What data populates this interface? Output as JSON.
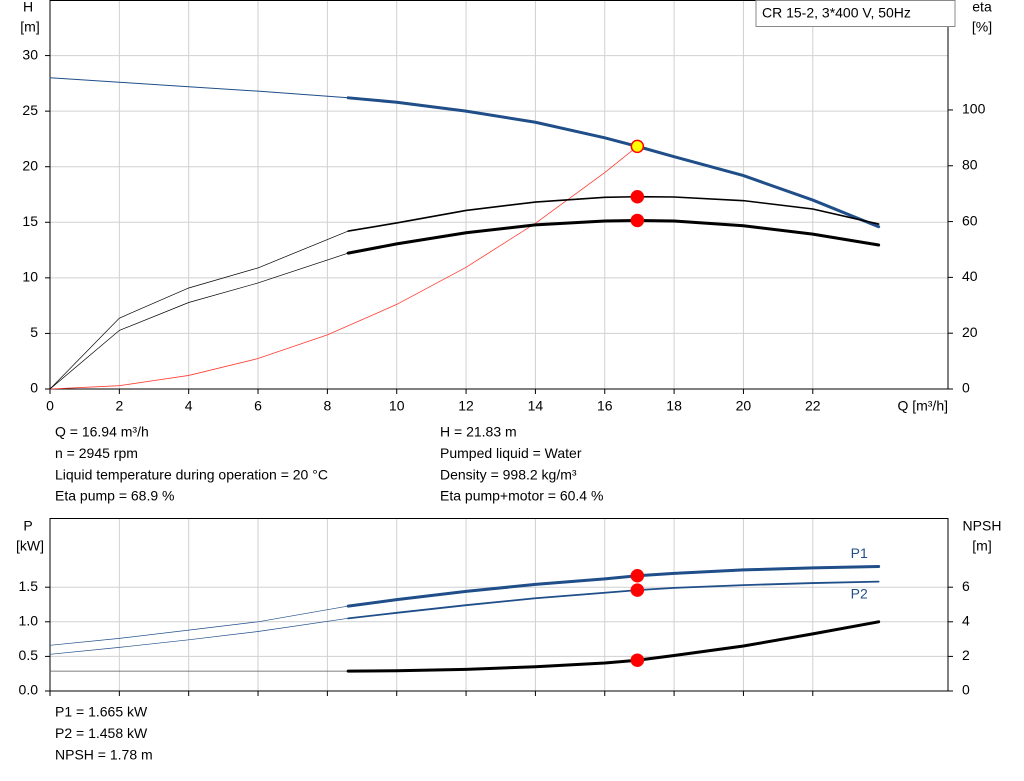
{
  "chart_data": [
    {
      "type": "line",
      "title": "CR 15-2, 3*400 V, 50Hz",
      "ylabel": [
        "H",
        "[m]"
      ],
      "y2label": [
        "eta",
        "[%]"
      ],
      "xlabel": "Q [m³/h]",
      "xlim": [
        0,
        25.9
      ],
      "xticks": [
        0,
        2,
        4,
        6,
        8,
        10,
        12,
        14,
        16,
        18,
        20,
        22
      ],
      "ylim": [
        0,
        35
      ],
      "yticks": [
        0,
        5,
        10,
        15,
        20,
        25,
        30
      ],
      "y2lim": [
        0,
        139.4
      ],
      "y2ticks": [
        0,
        20,
        40,
        60,
        80,
        100
      ],
      "grid": true,
      "show_xtick_labels": true,
      "series": [
        {
          "color": "#1f4e89",
          "width": 1,
          "x": [
            0,
            2,
            4,
            6,
            8.6
          ],
          "values": [
            28,
            27.6,
            27.2,
            26.8,
            26.2
          ]
        },
        {
          "color": "#1f4e89",
          "width": 3,
          "x": [
            8.6,
            10,
            12,
            14,
            16,
            16.94,
            18,
            20,
            22,
            23.9
          ],
          "values": [
            26.2,
            25.8,
            25.0,
            24.0,
            22.6,
            21.83,
            20.9,
            19.2,
            17.0,
            14.6
          ]
        },
        {
          "color": "#ff3b30",
          "width": 0.8,
          "x": [
            0,
            2,
            4,
            6,
            8,
            10,
            12,
            14,
            16,
            16.94
          ],
          "values": [
            0,
            0.3,
            1.22,
            2.74,
            4.87,
            7.61,
            10.95,
            14.91,
            19.47,
            21.83
          ]
        },
        {
          "color": "#000000",
          "width": 0.7,
          "axis": "y2",
          "x": [
            0,
            2,
            4,
            6,
            8.6
          ],
          "values": [
            0,
            25.4,
            36.2,
            43.4,
            56.6
          ]
        },
        {
          "color": "#000000",
          "width": 1.6,
          "axis": "y2",
          "x": [
            8.6,
            10,
            12,
            14,
            16,
            16.94,
            18,
            20,
            22,
            23.9
          ],
          "values": [
            56.6,
            59.5,
            64,
            67,
            68.7,
            68.9,
            68.8,
            67.5,
            64.5,
            59.1
          ]
        },
        {
          "color": "#000000",
          "width": 0.7,
          "axis": "y2",
          "x": [
            0,
            2,
            4,
            6,
            8.6
          ],
          "values": [
            0,
            21,
            31,
            38,
            48.7
          ]
        },
        {
          "color": "#000000",
          "width": 3,
          "axis": "y2",
          "x": [
            8.6,
            10,
            12,
            14,
            16,
            16.94,
            18,
            20,
            22,
            23.9
          ],
          "values": [
            48.7,
            52,
            56,
            58.8,
            60.2,
            60.4,
            60.2,
            58.5,
            55.5,
            51.6
          ]
        },
        {
          "mode": "markers",
          "color": "#ffff00",
          "edge": "#ff0000",
          "x": [
            16.94
          ],
          "values": [
            21.83
          ]
        },
        {
          "mode": "markers",
          "color": "#ff0000",
          "axis": "y2",
          "x": [
            16.94,
            16.94
          ],
          "values": [
            68.9,
            60.4
          ]
        }
      ],
      "annotations": [
        [
          "Q = 16.94 m³/h",
          "n = 2945 rpm",
          "Liquid temperature during operation = 20 °C",
          "Eta pump = 68.9 %"
        ],
        [
          "H = 21.83 m",
          "Pumped liquid = Water",
          "Density = 998.2 kg/m³",
          "Eta pump+motor = 60.4 %"
        ]
      ]
    },
    {
      "type": "line",
      "ylabel": [
        "P",
        "[kW]"
      ],
      "y2label": [
        "NPSH",
        "[m]"
      ],
      "xlim": [
        0,
        25.9
      ],
      "xticks": [
        0,
        2,
        4,
        6,
        8,
        10,
        12,
        14,
        16,
        18,
        20,
        22
      ],
      "ylim": [
        0,
        2.5
      ],
      "yticks": [
        {
          "value": 0,
          "label": "0.0"
        },
        {
          "value": 0.5,
          "label": "0.5"
        },
        {
          "value": 1,
          "label": "1.0"
        },
        {
          "value": 1.5,
          "label": "1.5"
        }
      ],
      "y2lim": [
        0,
        10
      ],
      "y2ticks": [
        0,
        2,
        4,
        6
      ],
      "grid": true,
      "show_xtick_labels": false,
      "series": [
        {
          "color": "#1f4e89",
          "width": 0.7,
          "x": [
            0,
            2,
            4,
            6,
            8.6
          ],
          "values": [
            0.66,
            0.76,
            0.88,
            1.0,
            1.227
          ]
        },
        {
          "name": "P1",
          "color": "#1f4e89",
          "width": 3,
          "x": [
            8.6,
            10,
            12,
            14,
            16,
            16.94,
            18,
            20,
            22,
            23.9
          ],
          "values": [
            1.227,
            1.32,
            1.44,
            1.54,
            1.62,
            1.665,
            1.7,
            1.75,
            1.78,
            1.8
          ]
        },
        {
          "color": "#1f4e89",
          "width": 0.7,
          "x": [
            0,
            2,
            4,
            6,
            8.6
          ],
          "values": [
            0.53,
            0.63,
            0.74,
            0.86,
            1.05
          ]
        },
        {
          "name": "P2",
          "color": "#1f4e89",
          "width": 1.8,
          "x": [
            8.6,
            10,
            12,
            14,
            16,
            16.94,
            18,
            20,
            22,
            23.9
          ],
          "values": [
            1.05,
            1.13,
            1.24,
            1.34,
            1.42,
            1.458,
            1.49,
            1.53,
            1.56,
            1.58
          ]
        },
        {
          "color": "#555555",
          "width": 0.7,
          "axis": "y2",
          "x": [
            0,
            4,
            8.6
          ],
          "values": [
            1.15,
            1.15,
            1.15
          ]
        },
        {
          "color": "#000000",
          "width": 3,
          "axis": "y2",
          "x": [
            8.6,
            10,
            12,
            14,
            16,
            16.94,
            18,
            20,
            22,
            23.9
          ],
          "values": [
            1.15,
            1.17,
            1.25,
            1.4,
            1.62,
            1.78,
            2.05,
            2.6,
            3.3,
            4.0
          ]
        },
        {
          "mode": "markers",
          "color": "#ff0000",
          "x": [
            16.94,
            16.94
          ],
          "values": [
            1.665,
            1.458
          ]
        },
        {
          "mode": "markers",
          "color": "#ff0000",
          "axis": "y2",
          "x": [
            16.94
          ],
          "values": [
            1.78
          ]
        }
      ],
      "annotations": [
        [
          "P1 = 1.665 kW",
          "P2 = 1.458 kW",
          "NPSH = 1.78 m"
        ]
      ]
    }
  ]
}
